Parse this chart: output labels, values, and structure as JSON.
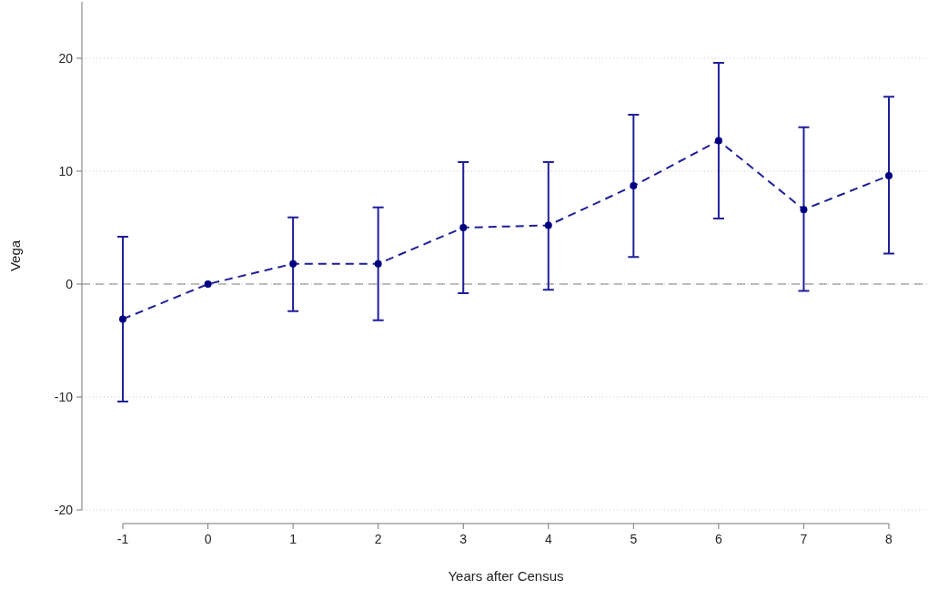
{
  "chart_data": {
    "type": "line",
    "xlabel": "Years after Census",
    "ylabel": "Vega",
    "x": [
      -1,
      0,
      1,
      2,
      3,
      4,
      5,
      6,
      7,
      8
    ],
    "series": [
      {
        "color": "#1f1f99",
        "values": [
          -3.1,
          0,
          1.8,
          1.8,
          5.0,
          5.2,
          8.7,
          12.7,
          6.6,
          9.6
        ],
        "errors": [
          [
            -10.4,
            4.2
          ],
          null,
          [
            -2.4,
            5.9
          ],
          [
            -3.2,
            6.8
          ],
          [
            -0.8,
            10.8
          ],
          [
            -0.5,
            10.8
          ],
          [
            2.4,
            15.0
          ],
          [
            5.8,
            19.6
          ],
          [
            -0.6,
            13.9
          ],
          [
            2.7,
            16.6
          ]
        ]
      }
    ],
    "xlim": [
      -1,
      8
    ],
    "xticks": [
      -1,
      0,
      1,
      2,
      3,
      4,
      5,
      6,
      7,
      8
    ],
    "ylim": [
      -20,
      25
    ],
    "yticks": [
      -20,
      -10,
      0,
      10,
      20
    ],
    "grid": "y",
    "marker": "circle",
    "line_style": "dashed",
    "ref_lines": [
      {
        "axis": "y",
        "value": 0,
        "color": "#808080",
        "line_style": "dashed"
      }
    ]
  }
}
